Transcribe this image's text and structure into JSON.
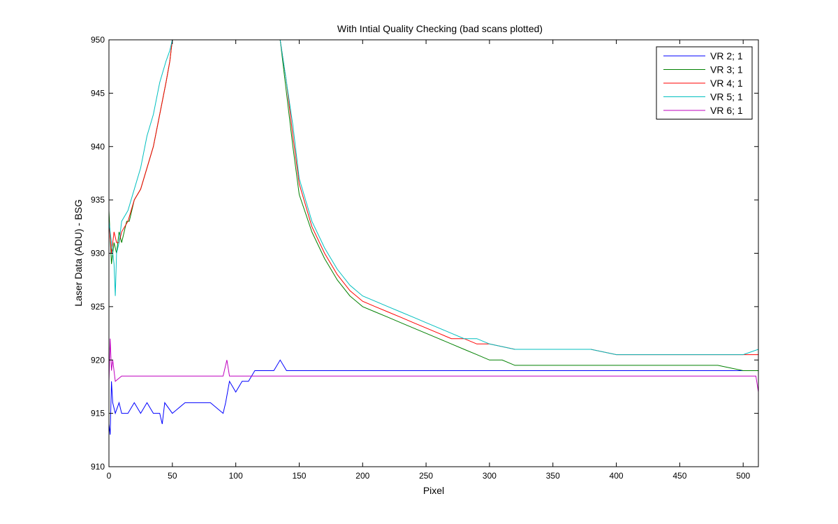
{
  "chart_data": {
    "type": "line",
    "title": "With Intial Quality Checking (bad scans plotted)",
    "xlabel": "Pixel",
    "ylabel": "Laser Data (ADU) - BSG",
    "xlim": [
      0,
      512
    ],
    "ylim": [
      910,
      950
    ],
    "xticks": [
      0,
      50,
      100,
      150,
      200,
      250,
      300,
      350,
      400,
      450,
      500
    ],
    "yticks": [
      910,
      915,
      920,
      925,
      930,
      935,
      940,
      945,
      950
    ],
    "grid": false,
    "legend_position": "top-right",
    "series": [
      {
        "name": "VR  2; 1",
        "color": "#0000ff",
        "x": [
          0,
          1,
          2,
          3,
          5,
          8,
          10,
          15,
          20,
          25,
          30,
          35,
          40,
          42,
          44,
          50,
          60,
          70,
          80,
          90,
          92,
          95,
          100,
          105,
          110,
          115,
          120,
          125,
          130,
          135,
          140,
          150,
          160,
          170,
          180,
          190,
          200,
          220,
          240,
          260,
          280,
          300,
          320,
          340,
          360,
          380,
          400,
          420,
          440,
          460,
          480,
          500,
          512
        ],
        "y": [
          914,
          913,
          918,
          916,
          915,
          916,
          915,
          915,
          916,
          915,
          916,
          915,
          915,
          914,
          916,
          915,
          916,
          916,
          916,
          915,
          916,
          918,
          917,
          918,
          918,
          919,
          919,
          919,
          919,
          920,
          919,
          919,
          919,
          919,
          919,
          919,
          919,
          919,
          919,
          919,
          919,
          919,
          919,
          919,
          919,
          919,
          919,
          919,
          919,
          919,
          919,
          919,
          919
        ]
      },
      {
        "name": "VR  3; 1",
        "color": "#008000",
        "x": [
          0,
          2,
          4,
          6,
          8,
          10,
          12,
          14,
          16,
          20,
          25,
          30,
          35,
          40,
          45,
          48,
          50,
          51,
          135,
          140,
          145,
          150,
          160,
          170,
          180,
          190,
          200,
          210,
          220,
          230,
          240,
          250,
          260,
          270,
          280,
          290,
          300,
          310,
          320,
          340,
          360,
          380,
          400,
          420,
          440,
          460,
          480,
          500,
          512
        ],
        "y": [
          934,
          929,
          931,
          930,
          932,
          931,
          932,
          933,
          933,
          935,
          936,
          938,
          940,
          943,
          946,
          948,
          950,
          950,
          950,
          945,
          940,
          935.5,
          932,
          929.5,
          927.5,
          926,
          925,
          924.5,
          924,
          923.5,
          923,
          922.5,
          922,
          921.5,
          921,
          920.5,
          920,
          920,
          919.5,
          919.5,
          919.5,
          919.5,
          919.5,
          919.5,
          919.5,
          919.5,
          919.5,
          919,
          919
        ]
      },
      {
        "name": "VR  4; 1",
        "color": "#ff0000",
        "x": [
          0,
          2,
          4,
          6,
          8,
          10,
          15,
          20,
          25,
          30,
          35,
          40,
          45,
          48,
          50,
          51,
          135,
          140,
          145,
          150,
          160,
          170,
          180,
          190,
          200,
          210,
          220,
          230,
          240,
          250,
          260,
          270,
          280,
          290,
          300,
          320,
          340,
          360,
          380,
          400,
          420,
          440,
          460,
          480,
          500,
          512
        ],
        "y": [
          933,
          930,
          932,
          931,
          931,
          932,
          933,
          935,
          936,
          938,
          940,
          943,
          946,
          948,
          950,
          950,
          950,
          946,
          941,
          936.5,
          932.5,
          930,
          928,
          926.5,
          925.5,
          925,
          924.5,
          924,
          923.5,
          923,
          922.5,
          922,
          922,
          921.5,
          921.5,
          921,
          921,
          921,
          921,
          920.5,
          920.5,
          920.5,
          920.5,
          920.5,
          920.5,
          920.5
        ]
      },
      {
        "name": "VR  5; 1",
        "color": "#00bfbf",
        "x": [
          0,
          2,
          4,
          5,
          6,
          8,
          10,
          15,
          20,
          25,
          30,
          35,
          40,
          45,
          48,
          50,
          51,
          135,
          140,
          145,
          150,
          160,
          170,
          180,
          190,
          200,
          210,
          220,
          230,
          240,
          250,
          260,
          270,
          280,
          290,
          300,
          320,
          340,
          360,
          380,
          400,
          420,
          440,
          460,
          480,
          500,
          512
        ],
        "y": [
          933,
          931,
          929,
          926,
          930,
          931,
          933,
          934,
          936,
          938,
          941,
          943,
          946,
          948,
          949,
          950,
          950,
          950,
          946,
          942,
          937,
          933,
          930.5,
          928.5,
          927,
          926,
          925.5,
          925,
          924.5,
          924,
          923.5,
          923,
          922.5,
          922,
          922,
          921.5,
          921,
          921,
          921,
          921,
          920.5,
          920.5,
          920.5,
          920.5,
          920.5,
          920.5,
          921
        ]
      },
      {
        "name": "VR  6; 1",
        "color": "#bf00bf",
        "x": [
          0,
          1,
          2,
          3,
          5,
          10,
          20,
          30,
          40,
          50,
          60,
          70,
          80,
          90,
          93,
          95,
          100,
          110,
          120,
          130,
          140,
          150,
          160,
          170,
          180,
          190,
          200,
          220,
          240,
          260,
          280,
          300,
          320,
          340,
          360,
          380,
          400,
          420,
          440,
          460,
          480,
          500,
          510,
          512
        ],
        "y": [
          918,
          922,
          919,
          920,
          918,
          918.5,
          918.5,
          918.5,
          918.5,
          918.5,
          918.5,
          918.5,
          918.5,
          918.5,
          920,
          918.5,
          918.5,
          918.5,
          918.5,
          918.5,
          918.5,
          918.5,
          918.5,
          918.5,
          918.5,
          918.5,
          918.5,
          918.5,
          918.5,
          918.5,
          918.5,
          918.5,
          918.5,
          918.5,
          918.5,
          918.5,
          918.5,
          918.5,
          918.5,
          918.5,
          918.5,
          918.5,
          918.5,
          917
        ]
      }
    ]
  }
}
